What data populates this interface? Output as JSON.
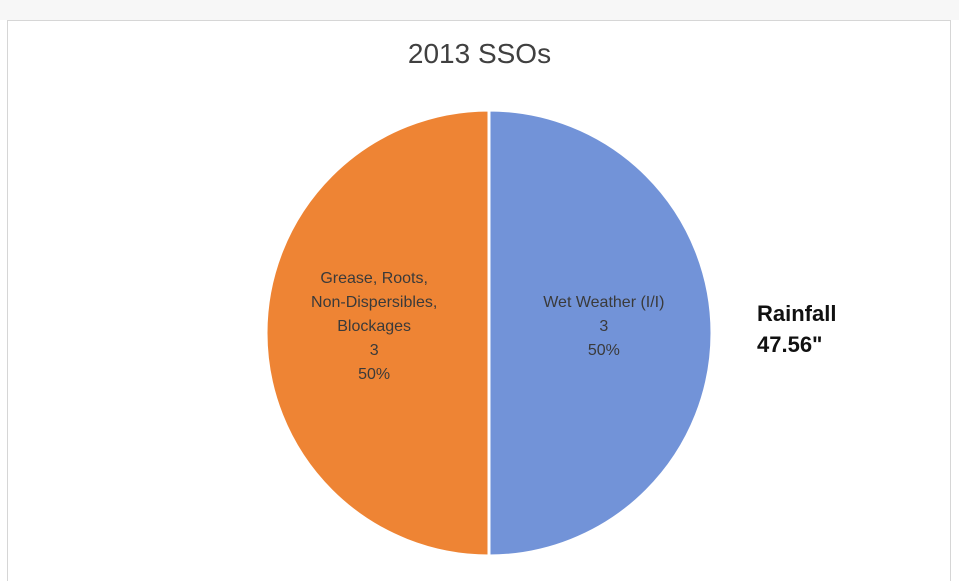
{
  "chart_data": {
    "type": "pie",
    "title": "2013 SSOs",
    "slices": [
      {
        "name": "Wet Weather (I/I)",
        "label_lines": [
          "Wet Weather (I/I)"
        ],
        "value": 3,
        "percent": "50%",
        "color": "#7293d8"
      },
      {
        "name": "Grease, Roots, Non-Dispersibles, Blockages",
        "label_lines": [
          "Grease, Roots,",
          "Non-Dispersibles,",
          "Blockages"
        ],
        "value": 3,
        "percent": "50%",
        "color": "#ee8434"
      }
    ],
    "legend": "none"
  },
  "annotation": {
    "line1": "Rainfall",
    "line2": "47.56\""
  },
  "colors": {
    "label_text": "#3a3a3a",
    "slice_border": "#ffffff"
  }
}
